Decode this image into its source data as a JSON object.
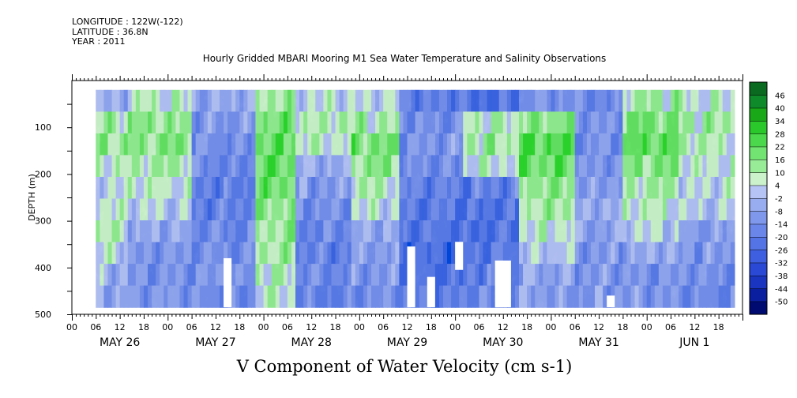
{
  "meta": {
    "longitude": "LONGITUDE : 122W(-122)",
    "latitude": "LATITUDE : 36.8N",
    "year": "YEAR : 2011"
  },
  "title": "Hourly Gridded MBARI Mooring M1 Sea Water Temperature and Salinity Observations",
  "units_label": "V Component of Water Velocity (cm s-1)",
  "chart_data": {
    "type": "heatmap",
    "title": "Hourly Gridded MBARI Mooring M1 Sea Water Temperature and Salinity Observations",
    "variable": "V Component of Water Velocity (cm s-1)",
    "ylabel": "DEPTH (m)",
    "y_reversed": true,
    "ylim": [
      500,
      0
    ],
    "y_ticks": [
      100,
      200,
      300,
      400,
      500
    ],
    "x_range_hours": [
      0,
      168
    ],
    "x_hour_labels": [
      "00",
      "06",
      "12",
      "18",
      "00",
      "06",
      "12",
      "18",
      "00",
      "06",
      "12",
      "18",
      "00",
      "06",
      "12",
      "18",
      "00",
      "06",
      "12",
      "18",
      "00",
      "06",
      "12",
      "18",
      "00",
      "06",
      "12",
      "18"
    ],
    "x_day_labels": [
      "MAY 26",
      "MAY 27",
      "MAY 28",
      "MAY 29",
      "MAY 30",
      "MAY 31",
      "JUN  1"
    ],
    "data_extent": {
      "hour_start": 6,
      "hour_end": 166,
      "depth_top": 20,
      "depth_bottom": 485
    },
    "colorbar_levels": [
      -50,
      -44,
      -38,
      -32,
      -26,
      -20,
      -14,
      -8,
      -2,
      4,
      10,
      16,
      22,
      28,
      34,
      40,
      46
    ],
    "colorbar_colors": [
      "#000b72",
      "#0a1ea0",
      "#1a36c0",
      "#2a4ad6",
      "#3d5fe0",
      "#5473e5",
      "#6a86e8",
      "#8098ec",
      "#98acf0",
      "#b6c4f5",
      "#ccf2cc",
      "#98ec98",
      "#72e472",
      "#4cd84c",
      "#2ac82a",
      "#18a818",
      "#0e8a2a",
      "#0a6a20"
    ],
    "regime_profiles": [
      {
        "hour_from": 6,
        "hour_to": 14,
        "mean_v": [
          -2,
          10,
          12,
          8,
          4,
          6,
          8,
          4,
          -2,
          -4
        ]
      },
      {
        "hour_from": 14,
        "hour_to": 30,
        "mean_v": [
          6,
          12,
          14,
          10,
          6,
          2,
          -4,
          -8,
          -10,
          -8
        ]
      },
      {
        "hour_from": 30,
        "hour_to": 46,
        "mean_v": [
          -4,
          -8,
          -10,
          -12,
          -14,
          -14,
          -12,
          -10,
          -10,
          -12
        ]
      },
      {
        "hour_from": 46,
        "hour_to": 56,
        "mean_v": [
          10,
          16,
          18,
          18,
          16,
          14,
          12,
          10,
          8,
          6
        ]
      },
      {
        "hour_from": 56,
        "hour_to": 70,
        "mean_v": [
          4,
          8,
          6,
          -4,
          -8,
          -10,
          -12,
          -14,
          -12,
          -14
        ]
      },
      {
        "hour_from": 70,
        "hour_to": 82,
        "mean_v": [
          4,
          10,
          16,
          14,
          8,
          4,
          -4,
          -6,
          -8,
          -10
        ]
      },
      {
        "hour_from": 82,
        "hour_to": 98,
        "mean_v": [
          -14,
          -10,
          -8,
          -12,
          -14,
          -16,
          -18,
          -20,
          -18,
          -16
        ]
      },
      {
        "hour_from": 98,
        "hour_to": 112,
        "mean_v": [
          -20,
          8,
          10,
          6,
          -14,
          -18,
          -18,
          -16,
          -14,
          -12
        ]
      },
      {
        "hour_from": 112,
        "hour_to": 126,
        "mean_v": [
          -10,
          14,
          20,
          18,
          14,
          10,
          6,
          2,
          -4,
          -6
        ]
      },
      {
        "hour_from": 126,
        "hour_to": 138,
        "mean_v": [
          -12,
          -8,
          -10,
          -8,
          -6,
          -4,
          -6,
          -8,
          -8,
          -8
        ]
      },
      {
        "hour_from": 138,
        "hour_to": 152,
        "mean_v": [
          10,
          16,
          18,
          14,
          10,
          6,
          4,
          -4,
          -8,
          -8
        ]
      },
      {
        "hour_from": 152,
        "hour_to": 166,
        "mean_v": [
          6,
          10,
          8,
          6,
          4,
          2,
          -6,
          -8,
          -10,
          -12
        ]
      }
    ],
    "missing_regions": [
      {
        "hour_from": 38,
        "hour_to": 40,
        "depth_from": 380,
        "depth_to": 485
      },
      {
        "hour_from": 84,
        "hour_to": 86,
        "depth_from": 355,
        "depth_to": 485
      },
      {
        "hour_from": 89,
        "hour_to": 91,
        "depth_from": 420,
        "depth_to": 485
      },
      {
        "hour_from": 96,
        "hour_to": 98,
        "depth_from": 345,
        "depth_to": 405
      },
      {
        "hour_from": 106,
        "hour_to": 110,
        "depth_from": 385,
        "depth_to": 485
      },
      {
        "hour_from": 134,
        "hour_to": 136,
        "depth_from": 460,
        "depth_to": 485
      }
    ]
  }
}
